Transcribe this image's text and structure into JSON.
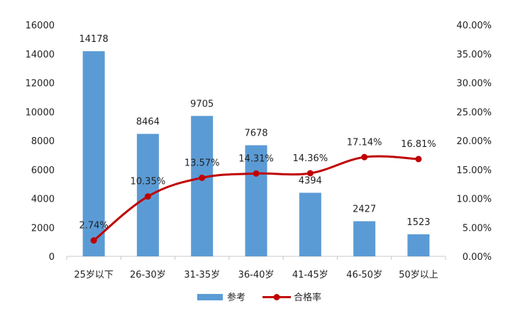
{
  "chart_data": {
    "type": "bar",
    "categories": [
      "25岁以下",
      "26-30岁",
      "31-35岁",
      "36-40岁",
      "41-45岁",
      "46-50岁",
      "50岁以上"
    ],
    "series": [
      {
        "name": "参考",
        "type": "bar",
        "axis": "left",
        "values": [
          14178,
          8464,
          9705,
          7678,
          4394,
          2427,
          1523
        ],
        "labels": [
          "14178",
          "8464",
          "9705",
          "7678",
          "4394",
          "2427",
          "1523"
        ],
        "color": "#5b9bd5"
      },
      {
        "name": "合格率",
        "type": "line",
        "axis": "right",
        "values": [
          2.74,
          10.35,
          13.57,
          14.31,
          14.36,
          17.14,
          16.81
        ],
        "labels": [
          "2.74%",
          "10.35%",
          "13.57%",
          "14.31%",
          "14.36%",
          "17.14%",
          "16.81%"
        ],
        "color": "#c00000"
      }
    ],
    "y_left": {
      "ylim": [
        0,
        16000
      ],
      "ticks": [
        "0",
        "2000",
        "4000",
        "6000",
        "8000",
        "10000",
        "12000",
        "14000",
        "16000"
      ]
    },
    "y_right": {
      "ylim": [
        0,
        40
      ],
      "ticks": [
        "0.00%",
        "5.00%",
        "10.00%",
        "15.00%",
        "20.00%",
        "25.00%",
        "30.00%",
        "35.00%",
        "40.00%"
      ]
    },
    "grid": false,
    "legend": "bottom",
    "title": "",
    "xlabel": "",
    "ylabel": ""
  }
}
